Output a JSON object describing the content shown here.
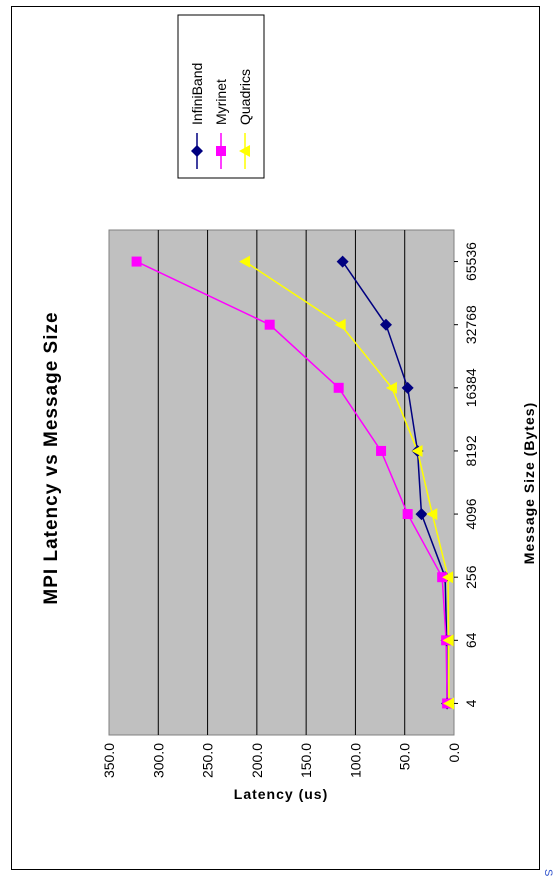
{
  "chart_data": {
    "type": "line",
    "title": "MPI Latency vs Message Size",
    "xlabel": "Message Size (Bytes)",
    "ylabel": "Latency (us)",
    "categories": [
      "4",
      "64",
      "256",
      "4096",
      "8192",
      "16384",
      "32768",
      "65536"
    ],
    "ylim": [
      0,
      350
    ],
    "yticks": [
      "0.0",
      "50.0",
      "100.0",
      "150.0",
      "200.0",
      "250.0",
      "300.0",
      "350.0"
    ],
    "grid": true,
    "legend_position": "top-right",
    "background": "#c0c0c0",
    "series": [
      {
        "name": "InfiniBand",
        "color": "#000080",
        "marker": "diamond",
        "values": [
          7,
          7.5,
          9,
          33,
          37,
          47,
          69,
          113
        ]
      },
      {
        "name": "Myrinet",
        "color": "#ff00ff",
        "marker": "square",
        "values": [
          7,
          8,
          12,
          47,
          74,
          117,
          187,
          322
        ]
      },
      {
        "name": "Quadrics",
        "color": "#ffff00",
        "marker": "triangle",
        "values": [
          5,
          5.5,
          6,
          22,
          37,
          63,
          115,
          212
        ]
      }
    ]
  },
  "edge_mark": "S"
}
